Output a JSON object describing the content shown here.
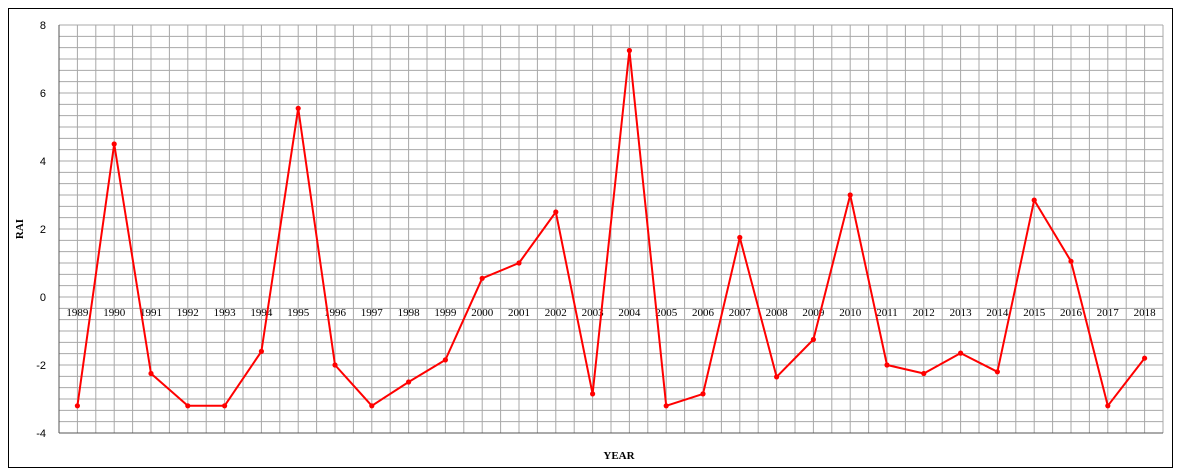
{
  "chart_data": {
    "type": "line",
    "title": "",
    "xlabel": "YEAR",
    "ylabel": "RAI",
    "ylim": [
      -4,
      8
    ],
    "y_ticks": [
      8,
      6,
      4,
      2,
      0,
      -2,
      -4
    ],
    "grid": true,
    "legend": "none",
    "line_color": "#ff0000",
    "x": [
      "1989",
      "1990",
      "1991",
      "1992",
      "1993",
      "1994",
      "1995",
      "1996",
      "1997",
      "1998",
      "1999",
      "2000",
      "2001",
      "2002",
      "2003",
      "2004",
      "2005",
      "2006",
      "2007",
      "2008",
      "2009",
      "2010",
      "2011",
      "2012",
      "2013",
      "2014",
      "2015",
      "2016",
      "2017",
      "2018"
    ],
    "series": [
      {
        "values": [
          -3.2,
          4.5,
          -2.25,
          -3.2,
          -3.2,
          -1.6,
          5.55,
          -2.0,
          -3.2,
          -2.5,
          -1.85,
          0.55,
          1.0,
          2.5,
          -2.85,
          7.25,
          -3.2,
          -2.85,
          1.75,
          -2.35,
          -1.25,
          3.0,
          -2.0,
          -2.25,
          -1.65,
          -2.2,
          2.85,
          1.05,
          -3.2,
          -1.8
        ]
      }
    ]
  }
}
